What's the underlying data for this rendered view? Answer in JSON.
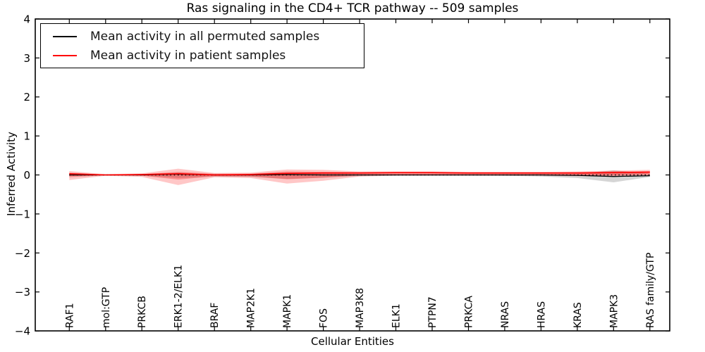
{
  "chart_data": {
    "type": "line",
    "title": "Ras signaling in the CD4+ TCR pathway -- 509 samples",
    "xlabel": "Cellular Entities",
    "ylabel": "Inferred Activity",
    "ylim": [
      -4,
      4
    ],
    "yticks": [
      4,
      3,
      2,
      1,
      0,
      -1,
      -2,
      -3,
      -4
    ],
    "ytick_labels": [
      "4",
      "3",
      "2",
      "1",
      "0",
      "−1",
      "−2",
      "−3",
      "−4"
    ],
    "grid": false,
    "legend_position": "upper left",
    "categories": [
      "RAF1",
      "mol:GTP",
      "PRKCB",
      "ERK1-2/ELK1",
      "BRAF",
      "MAP2K1",
      "MAPK1",
      "FOS",
      "MAP3K8",
      "ELK1",
      "PTPN7",
      "PRKCA",
      "NRAS",
      "HRAS",
      "KRAS",
      "MAPK3",
      "RAS family/GTP"
    ],
    "legend": [
      {
        "label": "Mean activity in all permuted samples",
        "color": "#000000"
      },
      {
        "label": "Mean activity in patient samples",
        "color": "#ff0000"
      }
    ],
    "reference_line": {
      "y": 0,
      "style": "dotted",
      "color": "#000000"
    },
    "series": [
      {
        "name": "Mean activity in all permuted samples",
        "color": "#000000",
        "width": 1.3,
        "values": [
          0.0,
          0.0,
          0.0,
          0.02,
          0.0,
          0.0,
          0.01,
          0.0,
          0.0,
          0.0,
          0.0,
          0.0,
          0.0,
          0.0,
          -0.01,
          -0.04,
          -0.02
        ]
      },
      {
        "name": "Mean activity in patient samples",
        "color": "#ff0000",
        "width": 1.6,
        "values": [
          0.03,
          0.0,
          0.01,
          0.03,
          0.0,
          0.01,
          0.04,
          0.05,
          0.05,
          0.06,
          0.06,
          0.05,
          0.05,
          0.05,
          0.05,
          0.06,
          0.07
        ]
      }
    ],
    "bands": [
      {
        "name": "permuted-samples-spread",
        "color": "#888888",
        "opacity": 0.35,
        "upper": [
          0.03,
          0.01,
          0.02,
          0.06,
          0.02,
          0.03,
          0.06,
          0.05,
          0.02,
          0.01,
          0.01,
          0.01,
          0.01,
          0.02,
          0.03,
          0.12,
          0.03
        ],
        "lower": [
          -0.03,
          -0.01,
          -0.02,
          -0.08,
          -0.04,
          -0.05,
          -0.1,
          -0.07,
          -0.03,
          -0.01,
          -0.01,
          -0.01,
          -0.02,
          -0.04,
          -0.08,
          -0.19,
          -0.05
        ]
      },
      {
        "name": "patient-samples-spread-outer",
        "color": "#ff0000",
        "opacity": 0.22,
        "upper": [
          0.1,
          0.02,
          0.04,
          0.16,
          0.05,
          0.06,
          0.14,
          0.13,
          0.09,
          0.09,
          0.09,
          0.08,
          0.08,
          0.08,
          0.09,
          0.11,
          0.13
        ],
        "lower": [
          -0.13,
          -0.02,
          -0.05,
          -0.26,
          -0.06,
          -0.08,
          -0.22,
          -0.15,
          -0.04,
          -0.02,
          -0.02,
          -0.02,
          -0.02,
          -0.02,
          -0.03,
          -0.04,
          -0.03
        ]
      },
      {
        "name": "patient-samples-spread-inner",
        "color": "#ff0000",
        "opacity": 0.28,
        "upper": [
          0.06,
          0.01,
          0.02,
          0.08,
          0.03,
          0.03,
          0.09,
          0.08,
          0.07,
          0.07,
          0.07,
          0.06,
          0.06,
          0.06,
          0.07,
          0.09,
          0.1
        ],
        "lower": [
          -0.06,
          -0.01,
          -0.02,
          -0.12,
          -0.03,
          -0.04,
          -0.11,
          -0.07,
          -0.01,
          0.0,
          0.0,
          0.0,
          0.0,
          0.0,
          -0.01,
          -0.01,
          0.01
        ]
      }
    ]
  }
}
